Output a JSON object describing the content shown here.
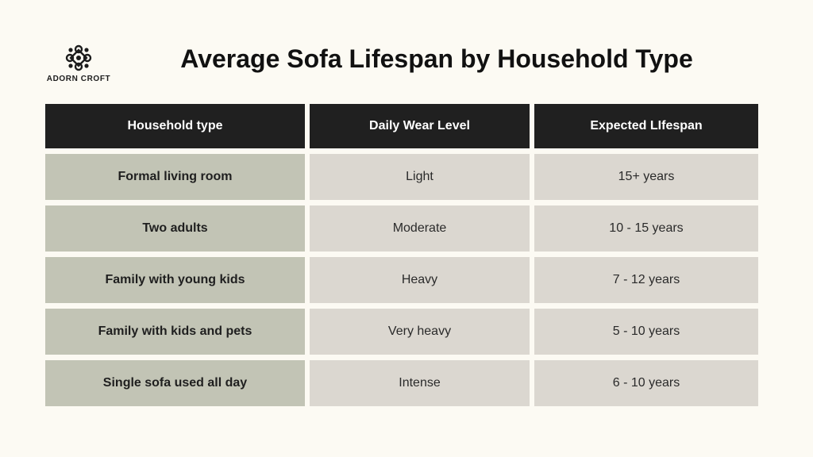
{
  "brand": {
    "name": "ADORN CROFT",
    "logo_icon": "ornamental-knot-icon"
  },
  "title": "Average Sofa Lifespan by Household Type",
  "table": {
    "headers": [
      "Household type",
      "Daily Wear Level",
      "Expected LIfespan"
    ],
    "rows": [
      [
        "Formal living room",
        "Light",
        "15+ years"
      ],
      [
        "Two adults",
        "Moderate",
        "10 - 15 years"
      ],
      [
        "Family with young kids",
        "Heavy",
        "7 - 12 years"
      ],
      [
        "Family with kids and pets",
        "Very heavy",
        "5 - 10 years"
      ],
      [
        "Single sofa used all day",
        "Intense",
        "6 - 10 years"
      ]
    ]
  },
  "colors": {
    "background": "#fcfaf3",
    "header_bg": "#202020",
    "first_col_bg": "#c2c4b5",
    "cell_bg": "#dbd7d0"
  }
}
